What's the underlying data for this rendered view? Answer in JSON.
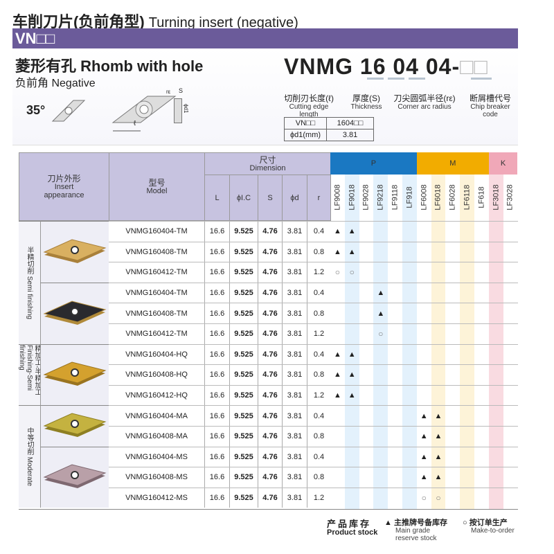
{
  "header": {
    "title_cn": "车削刀片(负前角型)",
    "title_en": "Turning insert (negative)",
    "series": "VN□□"
  },
  "info": {
    "shape_cn": "菱形有孔",
    "shape_en": "Rhomb with hole",
    "rake_cn": "负前角",
    "rake_en": "Negative",
    "angle": "35°",
    "code": {
      "prefix": "VNMG",
      "p1": "16",
      "p2": "04",
      "p3": "04-",
      "p4": "□□"
    },
    "labels": [
      {
        "cn": "切削刃长度(ℓ)",
        "en": "Cutting edge length"
      },
      {
        "cn": "厚度(S)",
        "en": "Thickness"
      },
      {
        "cn": "刀尖圆弧半径(rε)",
        "en": "Corner arc radius"
      },
      {
        "cn": "断屑槽代号",
        "en": "Chip breaker code"
      }
    ],
    "diagram_labels": {
      "r": "rε",
      "s": "S",
      "d": "ϕd1",
      "l": "ℓ"
    },
    "spec_table": [
      [
        "VN□□",
        "1604□□"
      ],
      [
        "ϕd1(mm)",
        "3.81"
      ]
    ]
  },
  "table": {
    "col_insert": {
      "cn": "刀片外形",
      "en1": "Insert",
      "en2": "appearance"
    },
    "col_model": {
      "cn": "型号",
      "en": "Model"
    },
    "dimension": {
      "cn": "尺寸",
      "en": "Dimension"
    },
    "dim_cols": [
      "L",
      "ϕI.C",
      "S",
      "ϕd",
      "r"
    ],
    "groups": [
      {
        "name": "P",
        "color": "#1a78c2",
        "count": 6
      },
      {
        "name": "M",
        "color": "#f2ac00",
        "count": 5
      },
      {
        "name": "K",
        "color": "#f0a8b8",
        "count": 2
      }
    ],
    "grades": [
      "LF9008",
      "LF9018",
      "LF9028",
      "LF9218",
      "LF9118",
      "LF918",
      "LF6008",
      "LF6018",
      "LF6028",
      "LF6118",
      "LF618",
      "LF3018",
      "LF3028"
    ],
    "categories": [
      {
        "cn": "半精切削",
        "en": "Semi finishing",
        "rows": 6
      },
      {
        "cn": "精加工-半精加工",
        "en": "Finishing-Semi finishing",
        "rows": 3
      },
      {
        "cn": "中等切削",
        "en": "Moderate",
        "rows": 5
      }
    ],
    "inserts": [
      {
        "color": "#d9b061",
        "dark": "#a9803a",
        "rows": 3
      },
      {
        "color": "#2a2a2e",
        "dark": "#b08a3a",
        "rows": 3
      },
      {
        "color": "#d4a12e",
        "dark": "#9a7420",
        "rows": 3
      },
      {
        "color": "#c4b240",
        "dark": "#8e7f22",
        "rows": 2
      },
      {
        "color": "#b9a0a8",
        "dark": "#7e6870",
        "rows": 3
      }
    ],
    "rows": [
      {
        "model": "VNMG160404-TM",
        "dims": [
          "16.6",
          "9.525",
          "4.76",
          "3.81",
          "0.4"
        ],
        "marks": {
          "0": "▲",
          "1": "▲"
        }
      },
      {
        "model": "VNMG160408-TM",
        "dims": [
          "16.6",
          "9.525",
          "4.76",
          "3.81",
          "0.8"
        ],
        "marks": {
          "0": "▲",
          "1": "▲"
        }
      },
      {
        "model": "VNMG160412-TM",
        "dims": [
          "16.6",
          "9.525",
          "4.76",
          "3.81",
          "1.2"
        ],
        "marks": {
          "0": "○",
          "1": "○"
        }
      },
      {
        "model": "VNMG160404-TM",
        "dims": [
          "16.6",
          "9.525",
          "4.76",
          "3.81",
          "0.4"
        ],
        "marks": {
          "3": "▲"
        }
      },
      {
        "model": "VNMG160408-TM",
        "dims": [
          "16.6",
          "9.525",
          "4.76",
          "3.81",
          "0.8"
        ],
        "marks": {
          "3": "▲"
        }
      },
      {
        "model": "VNMG160412-TM",
        "dims": [
          "16.6",
          "9.525",
          "4.76",
          "3.81",
          "1.2"
        ],
        "marks": {
          "3": "○"
        }
      },
      {
        "model": "VNMG160404-HQ",
        "dims": [
          "16.6",
          "9.525",
          "4.76",
          "3.81",
          "0.4"
        ],
        "marks": {
          "0": "▲",
          "1": "▲"
        }
      },
      {
        "model": "VNMG160408-HQ",
        "dims": [
          "16.6",
          "9.525",
          "4.76",
          "3.81",
          "0.8"
        ],
        "marks": {
          "0": "▲",
          "1": "▲"
        }
      },
      {
        "model": "VNMG160412-HQ",
        "dims": [
          "16.6",
          "9.525",
          "4.76",
          "3.81",
          "1.2"
        ],
        "marks": {
          "0": "▲",
          "1": "▲"
        }
      },
      {
        "model": "VNMG160404-MA",
        "dims": [
          "16.6",
          "9.525",
          "4.76",
          "3.81",
          "0.4"
        ],
        "marks": {
          "6": "▲",
          "7": "▲"
        }
      },
      {
        "model": "VNMG160408-MA",
        "dims": [
          "16.6",
          "9.525",
          "4.76",
          "3.81",
          "0.8"
        ],
        "marks": {
          "6": "▲",
          "7": "▲"
        }
      },
      {
        "model": "VNMG160404-MS",
        "dims": [
          "16.6",
          "9.525",
          "4.76",
          "3.81",
          "0.4"
        ],
        "marks": {
          "6": "▲",
          "7": "▲"
        }
      },
      {
        "model": "VNMG160408-MS",
        "dims": [
          "16.6",
          "9.525",
          "4.76",
          "3.81",
          "0.8"
        ],
        "marks": {
          "6": "▲",
          "7": "▲"
        }
      },
      {
        "model": "VNMG160412-MS",
        "dims": [
          "16.6",
          "9.525",
          "4.76",
          "3.81",
          "1.2"
        ],
        "marks": {
          "6": "○",
          "7": "○"
        }
      }
    ]
  },
  "legend": {
    "title_cn": "产品库存",
    "title_en": "Product stock",
    "main_symbol": "▲",
    "main_cn": "主推牌号备库存",
    "main_en1": "Main grade",
    "main_en2": "reserve stock",
    "order_symbol": "○",
    "order_cn": "按订单生产",
    "order_en": "Make-to-order"
  }
}
